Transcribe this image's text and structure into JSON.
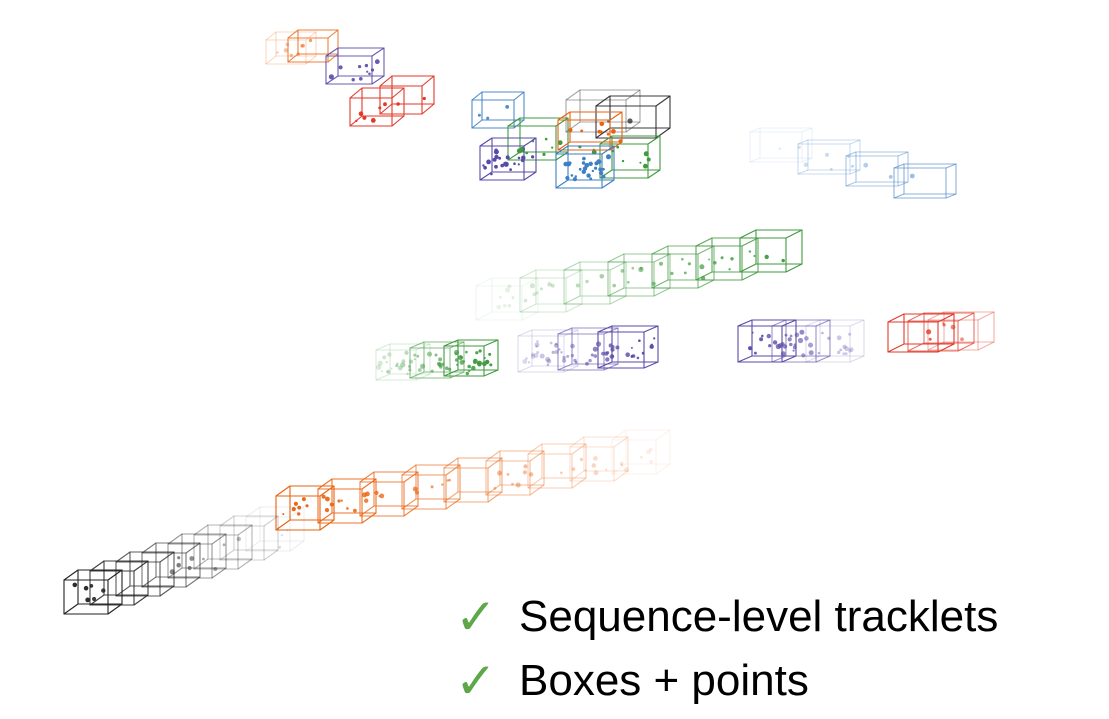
{
  "colors": {
    "orange": "#e8620f",
    "purple": "#5a4aa8",
    "red": "#e03a2a",
    "blue": "#3f7fc4",
    "green": "#3f9a3f",
    "gray": "#222222",
    "check": "#5ea84a"
  },
  "bullets": [
    {
      "icon": "check-icon",
      "text": "Sequence-level tracklets"
    },
    {
      "icon": "check-icon",
      "text": "Boxes + points"
    }
  ],
  "tracklets": [
    {
      "name": "orange-small",
      "color": "orange",
      "boxes": 2
    },
    {
      "name": "purple-small",
      "color": "purple",
      "boxes": 1
    },
    {
      "name": "red-pair",
      "color": "red",
      "boxes": 2
    },
    {
      "name": "blue-outline",
      "color": "blue",
      "boxes": 1
    },
    {
      "name": "gray-top",
      "color": "gray",
      "boxes": 2
    },
    {
      "name": "green-cluster",
      "color": "green",
      "boxes": 2
    },
    {
      "name": "orange-center",
      "color": "orange",
      "boxes": 1
    },
    {
      "name": "purple-center",
      "color": "purple",
      "boxes": 1
    },
    {
      "name": "blue-center",
      "color": "blue",
      "boxes": 1
    },
    {
      "name": "light-blue-long",
      "color": "blue",
      "boxes": 4
    },
    {
      "name": "green-long",
      "color": "green",
      "boxes": 7
    },
    {
      "name": "green-lower",
      "color": "green",
      "boxes": 3
    },
    {
      "name": "purple-lower",
      "color": "purple",
      "boxes": 3
    },
    {
      "name": "purple-right",
      "color": "purple",
      "boxes": 3
    },
    {
      "name": "red-right",
      "color": "red",
      "boxes": 3
    },
    {
      "name": "orange-long",
      "color": "orange",
      "boxes": 9
    },
    {
      "name": "gray-long",
      "color": "gray",
      "boxes": 8
    }
  ]
}
